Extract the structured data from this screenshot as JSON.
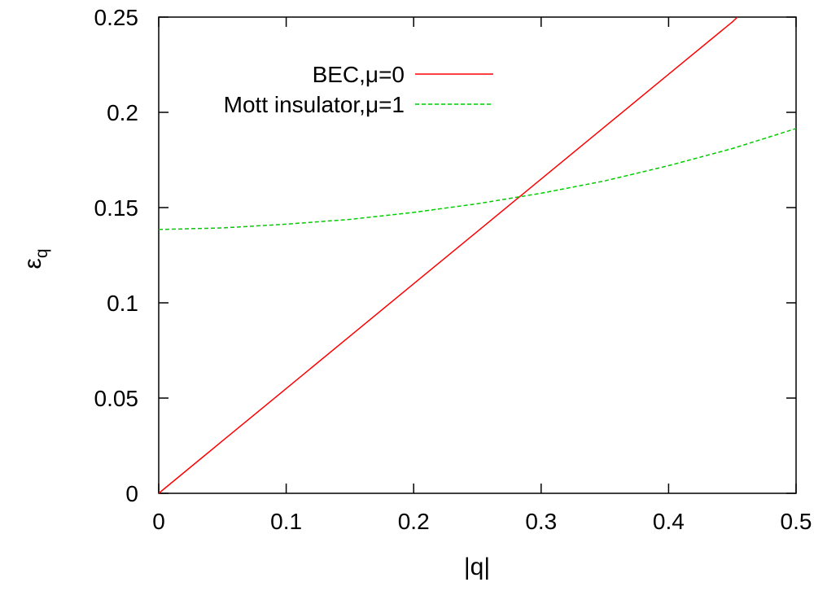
{
  "chart_data": {
    "type": "line",
    "xlabel": "|q|",
    "ylabel_base": "ε",
    "ylabel_sub": "q",
    "xlim": [
      0,
      0.5
    ],
    "ylim": [
      0,
      0.25
    ],
    "xticks": [
      0,
      0.1,
      0.2,
      0.3,
      0.4,
      0.5
    ],
    "xtick_labels": [
      "0",
      "0.1",
      "0.2",
      "0.3",
      "0.4",
      "0.5"
    ],
    "yticks": [
      0,
      0.05,
      0.1,
      0.15,
      0.2,
      0.25
    ],
    "ytick_labels": [
      "0",
      "0.05",
      "0.1",
      "0.15",
      "0.2",
      "0.25"
    ],
    "grid": false,
    "legend_position": "top-right",
    "series": [
      {
        "name": "BEC,μ=0",
        "color": "#ff0000",
        "dash": "solid",
        "x": [
          0,
          0.05,
          0.1,
          0.15,
          0.2,
          0.25,
          0.3,
          0.35,
          0.4,
          0.45,
          0.454
        ],
        "y": [
          0,
          0.0275,
          0.055,
          0.0825,
          0.11,
          0.1375,
          0.165,
          0.1925,
          0.22,
          0.2475,
          0.25
        ]
      },
      {
        "name": "Mott insulator,μ=1",
        "color": "#00cc00",
        "dash": "dashed",
        "x": [
          0,
          0.05,
          0.1,
          0.15,
          0.2,
          0.25,
          0.3,
          0.35,
          0.4,
          0.45,
          0.5
        ],
        "y": [
          0.1385,
          0.1393,
          0.1413,
          0.1438,
          0.1475,
          0.152,
          0.1575,
          0.164,
          0.172,
          0.181,
          0.1915
        ]
      }
    ]
  }
}
